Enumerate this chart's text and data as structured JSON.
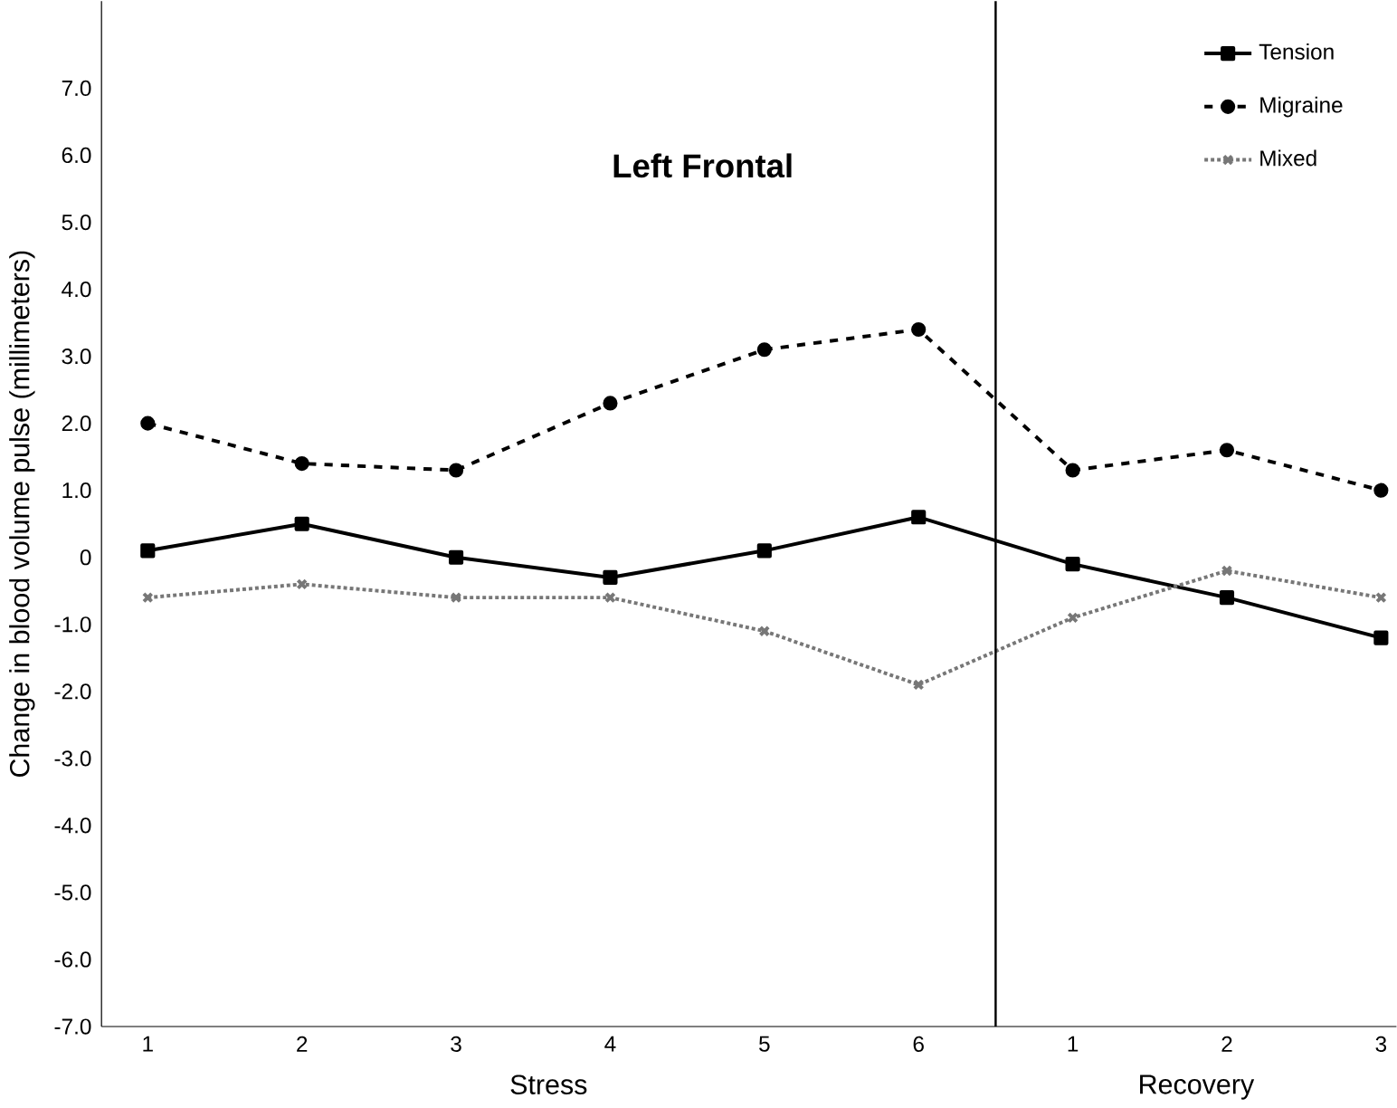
{
  "chart_data": {
    "type": "line",
    "title": "Left Frontal",
    "ylabel": "Change in blood volume pulse (millimeters)",
    "categories": [
      "1",
      "2",
      "3",
      "4",
      "5",
      "6",
      "1",
      "2",
      "3"
    ],
    "ylim": [
      -7,
      8.3
    ],
    "yticks": [
      {
        "value": 7,
        "label": "7.0"
      },
      {
        "value": 6,
        "label": "6.0"
      },
      {
        "value": 5,
        "label": "5.0"
      },
      {
        "value": 4,
        "label": "4.0"
      },
      {
        "value": 3,
        "label": "3.0"
      },
      {
        "value": 2,
        "label": "2.0"
      },
      {
        "value": 1,
        "label": "1.0"
      },
      0,
      {
        "value": -1,
        "label": "-1.0"
      },
      {
        "value": -2,
        "label": "-2.0"
      },
      {
        "value": -3,
        "label": "-3.0"
      },
      {
        "value": -4,
        "label": "-4.0"
      },
      {
        "value": -5,
        "label": "-5.0"
      },
      {
        "value": -6,
        "label": "-6.0"
      },
      {
        "value": -7,
        "label": "-7.0"
      }
    ],
    "series": [
      {
        "name": "Tension",
        "color": "#000000",
        "marker": "square",
        "line_style": "solid",
        "values": [
          0.1,
          0.5,
          0.0,
          -0.3,
          0.1,
          0.6,
          -0.1,
          -0.6,
          -1.2
        ]
      },
      {
        "name": "Migraine",
        "color": "#000000",
        "marker": "circle",
        "line_style": "dashed",
        "values": [
          2.0,
          1.4,
          1.3,
          2.3,
          3.1,
          3.4,
          1.3,
          1.6,
          1.0
        ]
      },
      {
        "name": "Mixed",
        "color": "#777777",
        "marker": "cross",
        "line_style": "dotted",
        "values": [
          -0.6,
          -0.4,
          -0.6,
          -0.6,
          -1.1,
          -1.9,
          -0.9,
          -0.2,
          -0.6
        ]
      }
    ],
    "annotations": [
      "Stress",
      "Recovery"
    ],
    "legend": "top right",
    "grid": false
  }
}
